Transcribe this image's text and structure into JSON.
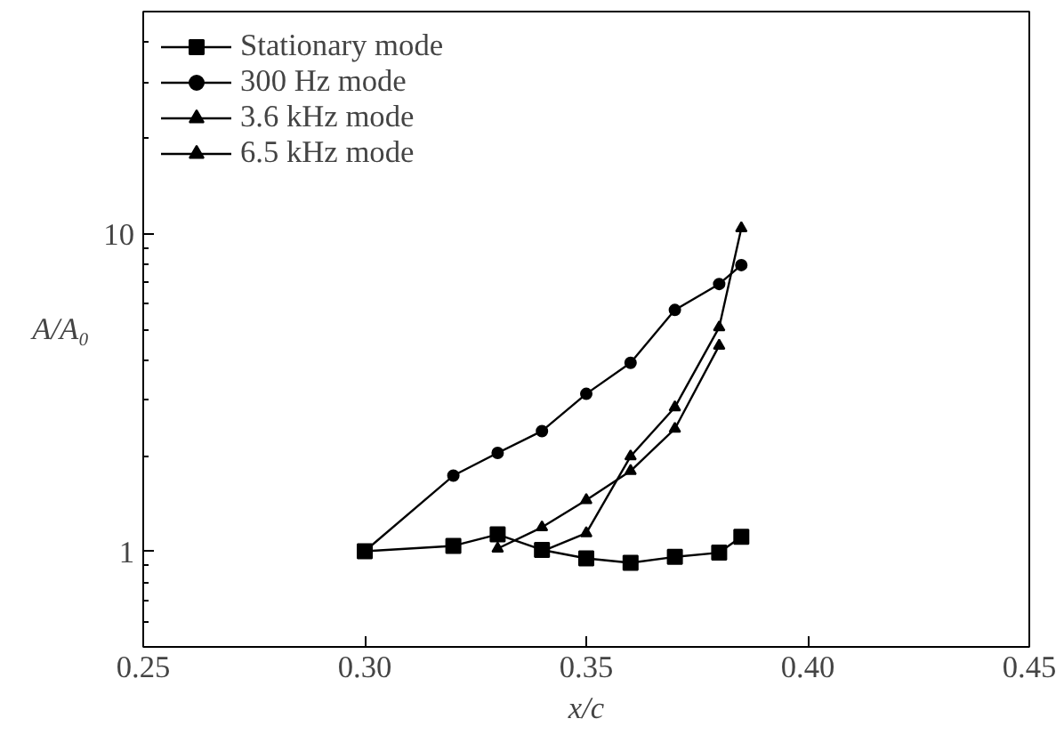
{
  "chart_data": {
    "type": "line",
    "xlabel": "x/c",
    "ylabel": "A/A₀",
    "log": "y",
    "xlim": [
      0.25,
      0.45
    ],
    "ylim": [
      0.5,
      50
    ],
    "xticks": [
      {
        "value": 0.25,
        "label": "0.25"
      },
      {
        "value": 0.3,
        "label": "0.30"
      },
      {
        "value": 0.35,
        "label": "0.35"
      },
      {
        "value": 0.4,
        "label": "0.40"
      },
      {
        "value": 0.45,
        "label": "0.45"
      }
    ],
    "yticks": [
      1,
      10
    ],
    "grid": false,
    "legend": "top left",
    "line_style": "solid",
    "series": [
      {
        "name": "Stationary mode",
        "color": "#000000",
        "marker": "square",
        "x": [
          0.3,
          0.32,
          0.33,
          0.34,
          0.35,
          0.36,
          0.37,
          0.38,
          0.385
        ],
        "values": [
          1.0,
          1.04,
          1.13,
          1.01,
          0.95,
          0.92,
          0.96,
          0.99,
          1.11
        ]
      },
      {
        "name": "300 Hz mode",
        "color": "#000000",
        "marker": "circle",
        "x": [
          0.3,
          0.32,
          0.33,
          0.34,
          0.35,
          0.36,
          0.37,
          0.38,
          0.385
        ],
        "values": [
          1.0,
          1.73,
          2.04,
          2.39,
          3.13,
          3.92,
          5.75,
          6.94,
          7.96
        ]
      },
      {
        "name": "3.6 kHz mode",
        "color": "#000000",
        "marker": "triangle",
        "x": [
          0.33,
          0.34,
          0.35,
          0.36,
          0.37,
          0.38
        ],
        "values": [
          1.02,
          1.19,
          1.45,
          1.79,
          2.43,
          4.44
        ]
      },
      {
        "name": "6.5 kHz mode",
        "color": "#000000",
        "marker": "triangle",
        "x": [
          0.34,
          0.35,
          0.36,
          0.37,
          0.38,
          0.385
        ],
        "values": [
          1.0,
          1.14,
          1.99,
          2.84,
          5.07,
          10.4
        ]
      }
    ]
  }
}
